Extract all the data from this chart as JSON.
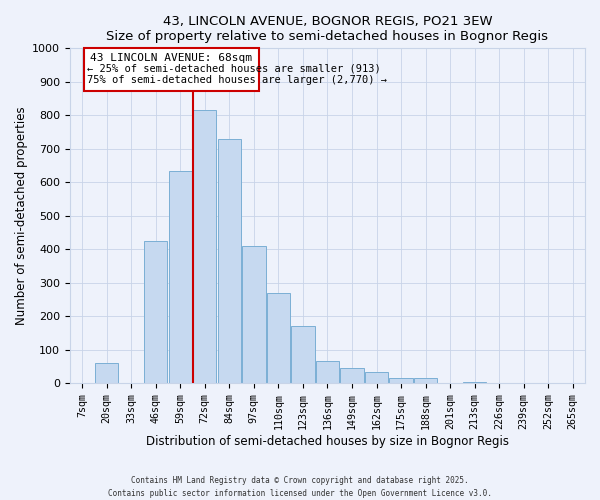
{
  "title": "43, LINCOLN AVENUE, BOGNOR REGIS, PO21 3EW",
  "subtitle": "Size of property relative to semi-detached houses in Bognor Regis",
  "xlabel": "Distribution of semi-detached houses by size in Bognor Regis",
  "ylabel": "Number of semi-detached properties",
  "bar_labels": [
    "7sqm",
    "20sqm",
    "33sqm",
    "46sqm",
    "59sqm",
    "72sqm",
    "84sqm",
    "97sqm",
    "110sqm",
    "123sqm",
    "136sqm",
    "149sqm",
    "162sqm",
    "175sqm",
    "188sqm",
    "201sqm",
    "213sqm",
    "226sqm",
    "239sqm",
    "252sqm",
    "265sqm"
  ],
  "bar_values": [
    0,
    60,
    0,
    425,
    635,
    815,
    730,
    410,
    270,
    170,
    65,
    45,
    35,
    15,
    15,
    0,
    5,
    0,
    0,
    0,
    0
  ],
  "bar_color": "#c6d9f0",
  "bar_edge_color": "#7bafd4",
  "property_label_line1": "43 LINCOLN AVENUE: 68sqm",
  "property_label_line2": "← 25% of semi-detached houses are smaller (913)",
  "property_label_line3": "75% of semi-detached houses are larger (2,770) →",
  "vline_color": "#cc0000",
  "ylim": [
    0,
    1000
  ],
  "footnote1": "Contains HM Land Registry data © Crown copyright and database right 2025.",
  "footnote2": "Contains public sector information licensed under the Open Government Licence v3.0.",
  "bg_color": "#eef2fb",
  "grid_color": "#c8d4e8"
}
